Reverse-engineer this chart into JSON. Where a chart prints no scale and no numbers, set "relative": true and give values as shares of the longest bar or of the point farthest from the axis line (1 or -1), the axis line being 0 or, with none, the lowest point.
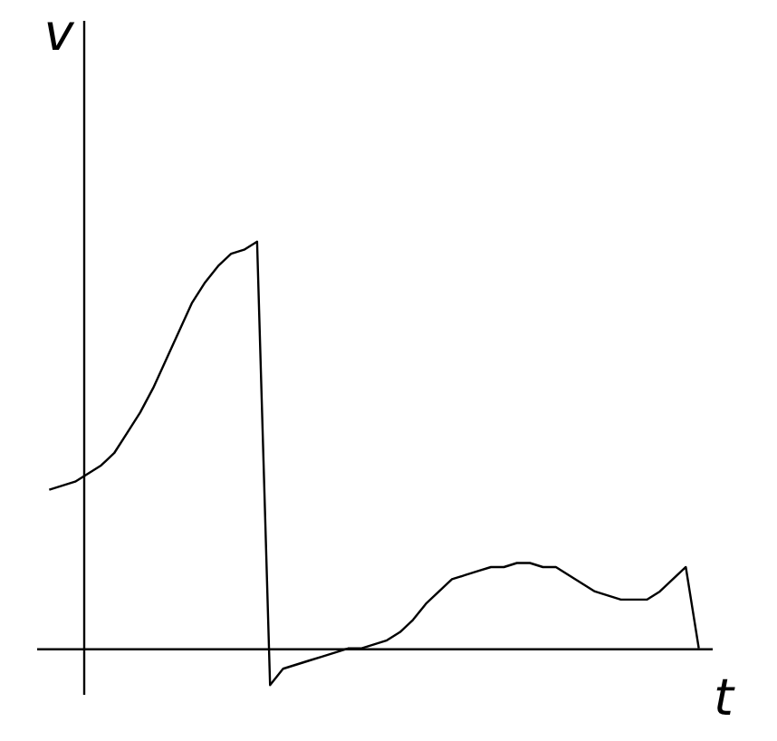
{
  "chart_data": {
    "type": "line",
    "relative": true,
    "xlabel": "t",
    "ylabel": "v",
    "grid": false,
    "marker": "none",
    "line_style": "solid",
    "categories": [
      null,
      null,
      null,
      null,
      null,
      null,
      null,
      null,
      null,
      null,
      null,
      null,
      null,
      null,
      null,
      null,
      null,
      null,
      null,
      null,
      null,
      null,
      null,
      null,
      null,
      null,
      null,
      null,
      null,
      null,
      null,
      null,
      null,
      null,
      null,
      null,
      null,
      null,
      null,
      null,
      null,
      null,
      null,
      null,
      null,
      null,
      null,
      null,
      null,
      null,
      null
    ],
    "series": [
      {
        "color": "#000000",
        "values": [
          0.39,
          0.4,
          0.41,
          0.43,
          0.45,
          0.48,
          0.53,
          0.58,
          0.64,
          0.71,
          0.78,
          0.85,
          0.9,
          0.94,
          0.97,
          0.98,
          1.0,
          -0.09,
          -0.05,
          -0.04,
          -0.03,
          -0.02,
          -0.01,
          0,
          0,
          0.01,
          0.02,
          0.04,
          0.07,
          0.11,
          0.14,
          0.17,
          0.18,
          0.19,
          0.2,
          0.2,
          0.21,
          0.21,
          0.2,
          0.2,
          0.18,
          0.16,
          0.14,
          0.13,
          0.12,
          0.12,
          0.12,
          0.14,
          0.17,
          0.2,
          0
        ]
      }
    ]
  }
}
